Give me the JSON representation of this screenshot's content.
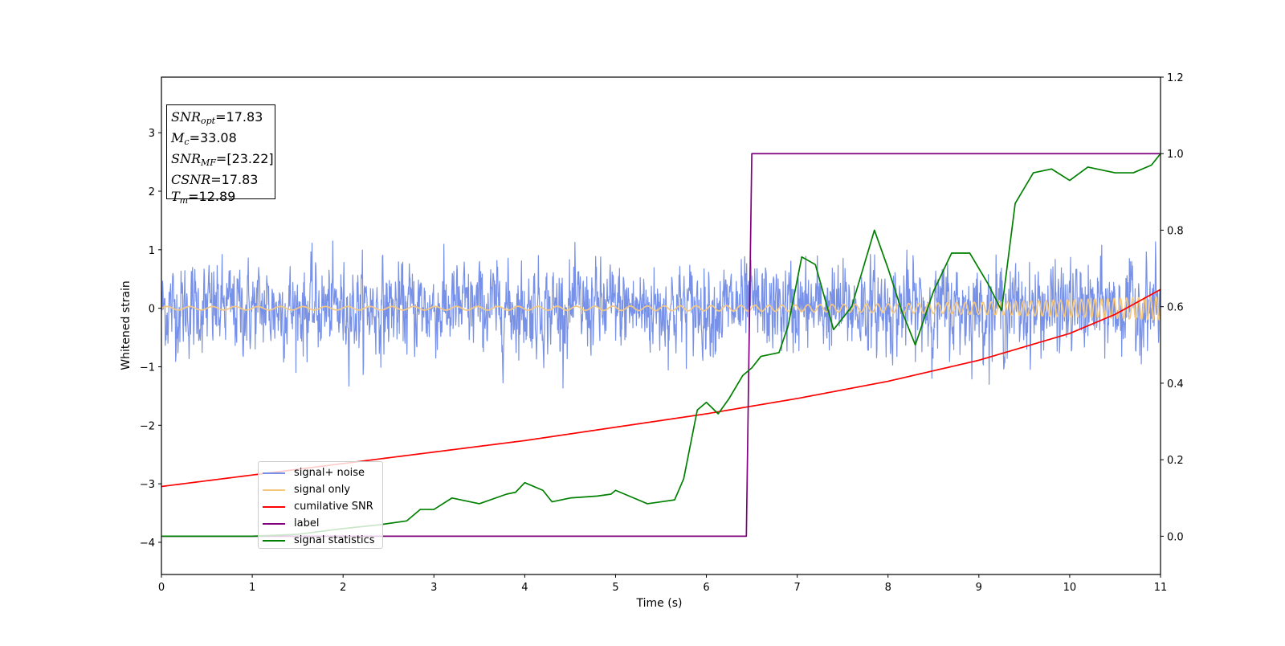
{
  "chart_data": {
    "type": "line",
    "title": "",
    "xlabel": "Time (s)",
    "ylabel": "Whitened strain",
    "y2label": "",
    "xlim": [
      0,
      11
    ],
    "ylim": [
      -4.55,
      3.95
    ],
    "y2lim": [
      -0.1,
      1.2
    ],
    "x_ticks": [
      0,
      1,
      2,
      3,
      4,
      5,
      6,
      7,
      8,
      9,
      10,
      11
    ],
    "y_ticks": [
      -4,
      -3,
      -2,
      -1,
      0,
      1,
      2,
      3
    ],
    "y2_ticks": [
      "0.0",
      "0.2",
      "0.4",
      "0.6",
      "0.8",
      "1.0",
      "1.2"
    ],
    "grid": false,
    "legend_position": "lower-left",
    "annotation_box": {
      "lines": [
        {
          "symbol": "SNR",
          "sub": "opt",
          "value": "=17.83"
        },
        {
          "symbol": "M",
          "sub": "c",
          "value": "=33.08"
        },
        {
          "symbol": "SNR",
          "sub": "MF",
          "value": "=[23.22]"
        },
        {
          "symbol": "CSNR",
          "sub": "",
          "value": "=17.83"
        },
        {
          "symbol": "T",
          "sub": "m",
          "value": "=12.89"
        }
      ]
    },
    "series": [
      {
        "name": "signal+ noise",
        "color": "#7891e8",
        "axis": "left",
        "kind": "noise",
        "amplitude_rms": 0.42,
        "range_approx": [
          -1.65,
          1.58
        ]
      },
      {
        "name": "signal only",
        "color": "#f5c880",
        "axis": "left",
        "kind": "chirp",
        "start_amplitude": 0.03,
        "end_amplitude": 0.2,
        "start_freq_hz": 4,
        "end_freq_hz": 16
      },
      {
        "name": "cumilative SNR",
        "color": "#ff0000",
        "axis": "right",
        "x": [
          0,
          1,
          2,
          3,
          4,
          5,
          6,
          7,
          8,
          9,
          10,
          10.5,
          11
        ],
        "y": [
          0.13,
          0.16,
          0.19,
          0.22,
          0.25,
          0.285,
          0.32,
          0.36,
          0.405,
          0.46,
          0.53,
          0.58,
          0.645
        ]
      },
      {
        "name": "label",
        "color": "#800080",
        "axis": "right",
        "x": [
          0,
          6.44,
          6.5,
          11
        ],
        "y": [
          0.0,
          0.0,
          1.0,
          1.0
        ]
      },
      {
        "name": "signal statistics",
        "color": "#008000",
        "axis": "right",
        "x": [
          0,
          1,
          1.5,
          2,
          2.4,
          2.7,
          2.85,
          3.0,
          3.2,
          3.5,
          3.8,
          3.9,
          4.0,
          4.2,
          4.3,
          4.5,
          4.8,
          4.95,
          5.0,
          5.2,
          5.35,
          5.5,
          5.65,
          5.75,
          5.9,
          6.0,
          6.13,
          6.25,
          6.4,
          6.5,
          6.6,
          6.8,
          6.9,
          7.05,
          7.2,
          7.4,
          7.6,
          7.85,
          8.0,
          8.15,
          8.3,
          8.5,
          8.7,
          8.9,
          9.1,
          9.25,
          9.4,
          9.6,
          9.8,
          10.0,
          10.2,
          10.5,
          10.7,
          10.9,
          11.0
        ],
        "y": [
          0.0,
          0.0,
          0.005,
          0.02,
          0.03,
          0.04,
          0.07,
          0.07,
          0.1,
          0.085,
          0.11,
          0.115,
          0.14,
          0.12,
          0.09,
          0.1,
          0.105,
          0.11,
          0.12,
          0.1,
          0.085,
          0.09,
          0.095,
          0.15,
          0.33,
          0.35,
          0.32,
          0.36,
          0.42,
          0.44,
          0.47,
          0.48,
          0.55,
          0.73,
          0.71,
          0.54,
          0.6,
          0.8,
          0.7,
          0.59,
          0.5,
          0.64,
          0.74,
          0.74,
          0.66,
          0.59,
          0.87,
          0.95,
          0.96,
          0.93,
          0.965,
          0.95,
          0.95,
          0.97,
          1.0
        ]
      }
    ]
  }
}
